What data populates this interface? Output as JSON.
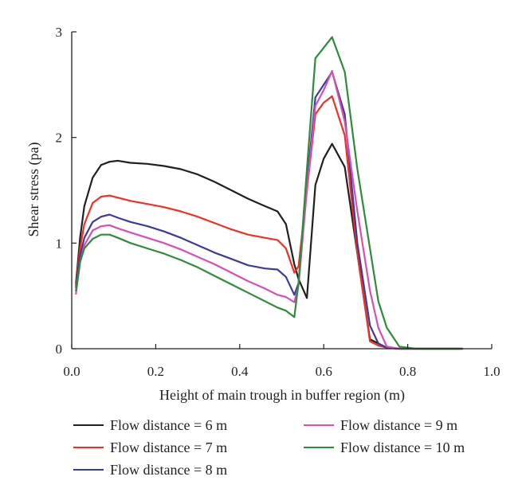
{
  "chart_data": {
    "type": "line",
    "title": "",
    "xlabel": "Height of main trough in buffer region (m)",
    "ylabel": "Shear stress (pa)",
    "xlim": [
      0.0,
      1.0
    ],
    "ylim": [
      0,
      3
    ],
    "xticks": [
      "0.0",
      "0.2",
      "0.4",
      "0.6",
      "0.8",
      "1.0"
    ],
    "xtick_values": [
      0.0,
      0.2,
      0.4,
      0.6,
      0.8,
      1.0
    ],
    "yticks": [
      "0",
      "1",
      "2",
      "3"
    ],
    "ytick_values": [
      0,
      1,
      2,
      3
    ],
    "grid": false,
    "legend_position": "bottom",
    "series": [
      {
        "name": "Flow distance = 6 m",
        "color": "#231f20",
        "x": [
          0.01,
          0.02,
          0.03,
          0.05,
          0.07,
          0.09,
          0.11,
          0.14,
          0.18,
          0.22,
          0.26,
          0.3,
          0.34,
          0.38,
          0.42,
          0.46,
          0.49,
          0.51,
          0.53,
          0.54,
          0.56,
          0.58,
          0.6,
          0.62,
          0.65,
          0.68,
          0.71,
          0.73,
          0.75,
          0.78,
          0.82,
          0.86,
          0.9,
          0.93
        ],
        "y": [
          0.62,
          1.05,
          1.35,
          1.62,
          1.74,
          1.77,
          1.78,
          1.76,
          1.75,
          1.73,
          1.7,
          1.65,
          1.58,
          1.5,
          1.42,
          1.35,
          1.3,
          1.18,
          0.8,
          0.66,
          0.48,
          1.55,
          1.8,
          1.94,
          1.72,
          0.9,
          0.09,
          0.05,
          0.01,
          0.0,
          0.0,
          0.0,
          0.0,
          0.0
        ]
      },
      {
        "name": "Flow distance = 7 m",
        "color": "#ee3124",
        "x": [
          0.01,
          0.02,
          0.03,
          0.05,
          0.07,
          0.09,
          0.11,
          0.14,
          0.18,
          0.22,
          0.26,
          0.3,
          0.34,
          0.38,
          0.42,
          0.46,
          0.49,
          0.51,
          0.53,
          0.54,
          0.56,
          0.58,
          0.6,
          0.62,
          0.65,
          0.68,
          0.71,
          0.73,
          0.75,
          0.78,
          0.82,
          0.86,
          0.9,
          0.93
        ],
        "y": [
          0.6,
          0.95,
          1.18,
          1.38,
          1.44,
          1.45,
          1.43,
          1.4,
          1.37,
          1.34,
          1.3,
          1.25,
          1.19,
          1.13,
          1.08,
          1.05,
          1.03,
          0.95,
          0.72,
          0.78,
          1.5,
          2.22,
          2.33,
          2.39,
          2.02,
          0.9,
          0.07,
          0.03,
          0.01,
          0.0,
          0.0,
          0.0,
          0.0,
          0.0
        ]
      },
      {
        "name": "Flow distance = 8 m",
        "color": "#3b3a9e",
        "x": [
          0.01,
          0.02,
          0.03,
          0.05,
          0.07,
          0.09,
          0.11,
          0.14,
          0.18,
          0.22,
          0.26,
          0.3,
          0.34,
          0.38,
          0.42,
          0.46,
          0.49,
          0.51,
          0.53,
          0.54,
          0.56,
          0.58,
          0.6,
          0.62,
          0.65,
          0.68,
          0.71,
          0.73,
          0.75,
          0.78,
          0.82,
          0.86,
          0.9,
          0.93
        ],
        "y": [
          0.58,
          0.88,
          1.05,
          1.2,
          1.25,
          1.27,
          1.24,
          1.2,
          1.16,
          1.11,
          1.05,
          0.98,
          0.91,
          0.85,
          0.79,
          0.76,
          0.75,
          0.68,
          0.51,
          0.62,
          1.55,
          2.38,
          2.5,
          2.62,
          2.22,
          1.0,
          0.22,
          0.05,
          0.01,
          0.0,
          0.0,
          0.0,
          0.0,
          0.0
        ]
      },
      {
        "name": "Flow distance = 9 m",
        "color": "#d64fb2",
        "x": [
          0.01,
          0.02,
          0.03,
          0.05,
          0.07,
          0.09,
          0.11,
          0.14,
          0.18,
          0.22,
          0.26,
          0.3,
          0.34,
          0.38,
          0.42,
          0.46,
          0.49,
          0.51,
          0.53,
          0.54,
          0.56,
          0.58,
          0.6,
          0.62,
          0.65,
          0.68,
          0.71,
          0.73,
          0.75,
          0.78,
          0.82,
          0.86,
          0.9,
          0.93
        ],
        "y": [
          0.52,
          0.82,
          0.98,
          1.12,
          1.16,
          1.17,
          1.14,
          1.1,
          1.05,
          1.0,
          0.94,
          0.87,
          0.8,
          0.72,
          0.64,
          0.57,
          0.51,
          0.49,
          0.44,
          0.6,
          1.5,
          2.3,
          2.45,
          2.63,
          2.15,
          1.3,
          0.55,
          0.2,
          0.02,
          0.0,
          0.0,
          0.0,
          0.0,
          0.0
        ]
      },
      {
        "name": "Flow distance = 10 m",
        "color": "#2e8b3a",
        "x": [
          0.01,
          0.02,
          0.03,
          0.05,
          0.07,
          0.09,
          0.11,
          0.14,
          0.18,
          0.22,
          0.26,
          0.3,
          0.34,
          0.38,
          0.42,
          0.46,
          0.49,
          0.51,
          0.53,
          0.54,
          0.56,
          0.58,
          0.6,
          0.62,
          0.65,
          0.68,
          0.71,
          0.73,
          0.75,
          0.78,
          0.82,
          0.86,
          0.9,
          0.93
        ],
        "y": [
          0.55,
          0.82,
          0.95,
          1.04,
          1.08,
          1.08,
          1.05,
          1.0,
          0.95,
          0.9,
          0.84,
          0.77,
          0.69,
          0.61,
          0.53,
          0.45,
          0.39,
          0.36,
          0.3,
          0.62,
          1.7,
          2.75,
          2.85,
          2.95,
          2.62,
          1.7,
          0.95,
          0.45,
          0.2,
          0.02,
          0.0,
          0.0,
          0.0,
          0.0
        ]
      }
    ]
  }
}
